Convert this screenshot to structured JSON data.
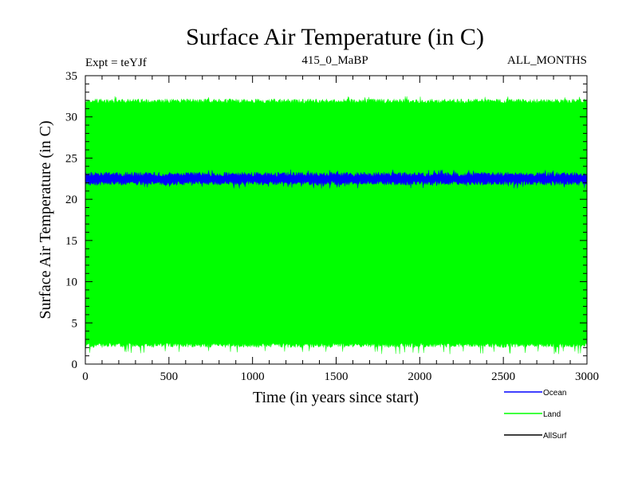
{
  "chart_data": {
    "type": "line",
    "title": "Surface Air Temperature (in C)",
    "subtitle_left": "Expt = teYJf",
    "subtitle_center": "415_0_MaBP",
    "subtitle_right": "ALL_MONTHS",
    "xlabel": "Time (in years since start)",
    "ylabel": "Surface Air Temperature (in C)",
    "xlim": [
      0,
      3000
    ],
    "ylim": [
      0,
      35
    ],
    "xticks": [
      0,
      500,
      1000,
      1500,
      2000,
      2500,
      3000
    ],
    "yticks": [
      0,
      5,
      10,
      15,
      20,
      25,
      30,
      35
    ],
    "series": [
      {
        "name": "Land",
        "color": "#00ff00",
        "min_approx": 2.0,
        "max_approx": 32.2,
        "min_extreme": 1.2,
        "max_extreme": 32.5
      },
      {
        "name": "Ocean",
        "color": "#0000ff",
        "min_approx": 21.7,
        "max_approx": 23.3,
        "min_extreme": 21.3,
        "max_extreme": 23.6
      },
      {
        "name": "AllSurf",
        "color": "#000000",
        "min_approx": null,
        "max_approx": null
      }
    ],
    "legend": [
      {
        "label": "Ocean",
        "color": "#0000ff"
      },
      {
        "label": "Land",
        "color": "#00ff00"
      },
      {
        "label": "AllSurf",
        "color": "#000000"
      }
    ]
  }
}
